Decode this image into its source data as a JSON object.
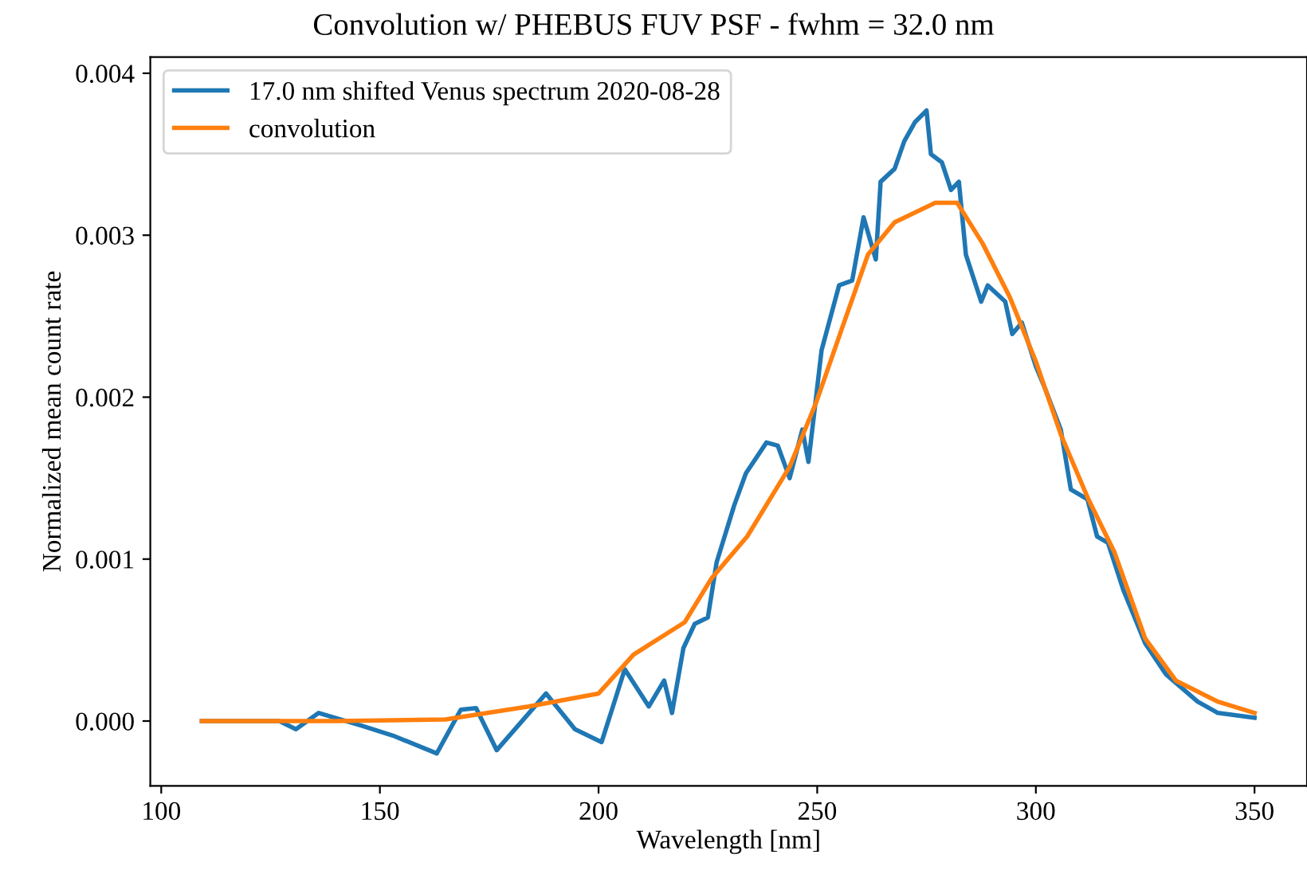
{
  "chart_data": {
    "type": "line",
    "title": "Convolution w/ PHEBUS FUV PSF - fwhm = 32.0 nm",
    "xlabel": "Wavelength [nm]",
    "ylabel": "Normalized mean count rate",
    "xlim": [
      97.5,
      362
    ],
    "xticks": [
      100,
      150,
      200,
      250,
      300,
      350
    ],
    "ylim": [
      -0.0004,
      0.0041
    ],
    "yticks": [
      {
        "value": 0,
        "label": "0.000"
      },
      {
        "value": 0.001,
        "label": "0.001"
      },
      {
        "value": 0.002,
        "label": "0.002"
      },
      {
        "value": 0.003,
        "label": "0.003"
      },
      {
        "value": 0.004,
        "label": "0.004"
      }
    ],
    "legend": "top left",
    "grid": false,
    "series": [
      {
        "name": "17.0 nm shifted Venus spectrum 2020-08-28",
        "color": "#1f77b4",
        "x": [
          109.3,
          127,
          130.8,
          136,
          146,
          153,
          163,
          168.5,
          172,
          176.7,
          188,
          194.6,
          200.7,
          206,
          211.5,
          215,
          216.8,
          219.4,
          222,
          225,
          227,
          231,
          233.7,
          238.4,
          241,
          243.7,
          246.6,
          248,
          251,
          255,
          258,
          260.6,
          263.4,
          264.5,
          267.7,
          269.9,
          272.4,
          275,
          276,
          278.5,
          280.6,
          282.4,
          284,
          287.5,
          289,
          293,
          294.6,
          296.8,
          300,
          302,
          305.7,
          308,
          311.8,
          314,
          316.5,
          320,
          325,
          329.7,
          337,
          341.6,
          350
        ],
        "values": [
          0,
          0,
          -5e-05,
          5e-05,
          -3e-05,
          -9e-05,
          -0.0002,
          7e-05,
          8e-05,
          -0.00018,
          0.00017,
          -5e-05,
          -0.00013,
          0.00032,
          9e-05,
          0.00025,
          5e-05,
          0.00045,
          0.0006,
          0.00064,
          0.00098,
          0.00133,
          0.00153,
          0.00172,
          0.0017,
          0.0015,
          0.0018,
          0.0016,
          0.00229,
          0.00269,
          0.00272,
          0.00311,
          0.00285,
          0.00333,
          0.00341,
          0.00358,
          0.0037,
          0.00377,
          0.0035,
          0.00345,
          0.00328,
          0.00333,
          0.00288,
          0.00259,
          0.00269,
          0.00259,
          0.00239,
          0.00246,
          0.00219,
          0.00206,
          0.0018,
          0.00143,
          0.00137,
          0.00114,
          0.0011,
          0.00081,
          0.00048,
          0.00029,
          0.00012,
          5e-05,
          2e-05
        ]
      },
      {
        "name": "convolution",
        "color": "#ff7f0e",
        "x": [
          109.3,
          140,
          165,
          184,
          200,
          208,
          219.7,
          225.8,
          234,
          243.7,
          249.8,
          255.6,
          261.6,
          267.7,
          277,
          282,
          287.8,
          294,
          300,
          305.7,
          312,
          318,
          325,
          332,
          341.6,
          350
        ],
        "values": [
          0,
          0,
          1e-05,
          9e-05,
          0.00017,
          0.00041,
          0.00061,
          0.00088,
          0.00114,
          0.00157,
          0.00197,
          0.00242,
          0.00288,
          0.00308,
          0.0032,
          0.0032,
          0.00295,
          0.00262,
          0.00222,
          0.00177,
          0.00137,
          0.00104,
          0.00051,
          0.00025,
          0.00012,
          5e-05
        ]
      }
    ]
  }
}
